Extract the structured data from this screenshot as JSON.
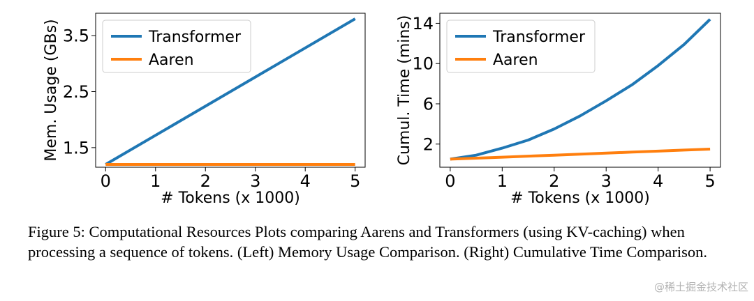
{
  "chart_data": [
    {
      "type": "line",
      "xlabel": "# Tokens (x 1000)",
      "ylabel": "Mem. Usage (GBs)",
      "xlim": [
        -0.2,
        5.2
      ],
      "ylim": [
        1.15,
        3.9
      ],
      "xticks": [
        0,
        1,
        2,
        3,
        4,
        5
      ],
      "yticks": [
        1.5,
        2.5,
        3.5
      ],
      "ytick_labels": [
        "1.5",
        "2.5",
        "3.5"
      ],
      "grid": false,
      "legend": "top-left",
      "x": [
        0,
        1,
        2,
        3,
        4,
        5
      ],
      "series": [
        {
          "name": "Transformer",
          "color": "#1f77b4",
          "values": [
            1.2,
            1.72,
            2.24,
            2.76,
            3.28,
            3.8
          ]
        },
        {
          "name": "Aaren",
          "color": "#ff7f0e",
          "values": [
            1.2,
            1.2,
            1.2,
            1.2,
            1.2,
            1.2
          ]
        }
      ]
    },
    {
      "type": "line",
      "xlabel": "# Tokens (x 1000)",
      "ylabel": "Cumul. Time (mins)",
      "xlim": [
        -0.2,
        5.2
      ],
      "ylim": [
        -0.3,
        15.0
      ],
      "xticks": [
        0,
        1,
        2,
        3,
        4,
        5
      ],
      "yticks": [
        2,
        6,
        10,
        14
      ],
      "ytick_labels": [
        "2",
        "6",
        "10",
        "14"
      ],
      "grid": false,
      "legend": "top-left",
      "x": [
        0,
        0.5,
        1,
        1.5,
        2,
        2.5,
        3,
        3.5,
        4,
        4.5,
        5
      ],
      "series": [
        {
          "name": "Transformer",
          "color": "#1f77b4",
          "values": [
            0.5,
            0.9,
            1.6,
            2.4,
            3.5,
            4.8,
            6.3,
            7.9,
            9.8,
            11.9,
            14.4
          ]
        },
        {
          "name": "Aaren",
          "color": "#ff7f0e",
          "values": [
            0.5,
            0.6,
            0.7,
            0.8,
            0.9,
            1.0,
            1.1,
            1.2,
            1.3,
            1.4,
            1.5
          ]
        }
      ]
    }
  ],
  "caption": "Figure 5: Computational Resources Plots comparing Aarens and Transformers (using KV-caching) when processing a sequence of tokens. (Left) Memory Usage Comparison. (Right) Cumulative Time Comparison.",
  "watermark": "@稀土掘金技术社区"
}
